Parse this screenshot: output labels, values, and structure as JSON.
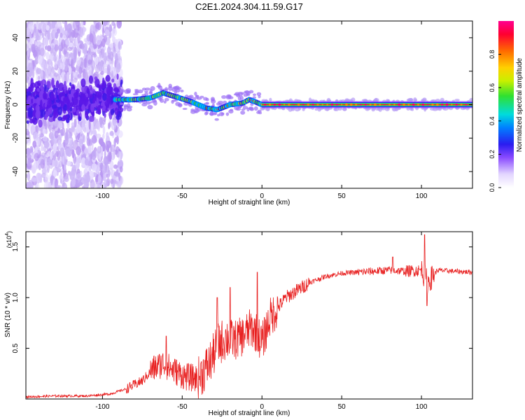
{
  "figure_title": "C2E1.2024.304.11.59.G17",
  "chart_data": [
    {
      "type": "heatmap",
      "xlabel": "Height of straight line (km)",
      "ylabel": "Frequency (Hz)",
      "xlim": [
        -148,
        132
      ],
      "ylim": [
        -50,
        50
      ],
      "xticks": [
        -100,
        -50,
        0,
        50,
        100
      ],
      "xtick_labels": [
        "-100",
        "-50",
        "0",
        "50",
        "100"
      ],
      "yticks": [
        -40,
        -20,
        0,
        20,
        40
      ],
      "ytick_labels": [
        "-40",
        "-20",
        "0",
        "20",
        "40"
      ],
      "colorbar": {
        "label": "Normalized spectral amplitude",
        "range": [
          0,
          1
        ],
        "ticks": [
          0.0,
          0.2,
          0.4,
          0.6,
          0.8
        ],
        "tick_labels": [
          "0.0",
          "0.2",
          "0.4",
          "0.6",
          "0.8"
        ],
        "colors": [
          "#ffffff",
          "#c9b8f2",
          "#7b3cf0",
          "#2a1cf0",
          "#0077ff",
          "#00d8e0",
          "#2be02b",
          "#c8f000",
          "#ffd000",
          "#ff6a00",
          "#ff0030",
          "#ff00a0"
        ]
      },
      "ridge": {
        "description_points_x": [
          -148,
          -120,
          -100,
          -90,
          -80,
          -70,
          -62,
          -55,
          -45,
          -35,
          -28,
          -20,
          -12,
          -8,
          -5,
          0,
          20,
          60,
          100,
          132
        ],
        "description_points_y": [
          2,
          2,
          3,
          3,
          3,
          4,
          7,
          5,
          2,
          -2,
          -3,
          0,
          1,
          3,
          2,
          0,
          0,
          0,
          0,
          0
        ]
      }
    },
    {
      "type": "line",
      "xlabel": "Height of straight line (km)",
      "ylabel": "SNR (10 * v/v)",
      "y_multiplier_label": "(x10",
      "y_multiplier_exp": "4",
      "xlim": [
        -148,
        132
      ],
      "ylim": [
        0,
        1.65
      ],
      "xticks": [
        -100,
        -50,
        0,
        50,
        100
      ],
      "xtick_labels": [
        "-100",
        "-50",
        "0",
        "50",
        "100"
      ],
      "yticks": [
        0.5,
        1.0,
        1.5
      ],
      "ytick_labels": [
        "0.5",
        "1.0",
        "1.5"
      ],
      "series": [
        {
          "color": "#e82020",
          "x": [
            -148,
            -130,
            -110,
            -95,
            -85,
            -75,
            -68,
            -62,
            -55,
            -48,
            -40,
            -33,
            -27,
            -22,
            -17,
            -12,
            -7,
            -3,
            0,
            5,
            10,
            15,
            20,
            25,
            30,
            35,
            40,
            50,
            60,
            70,
            80,
            90,
            100,
            104,
            110,
            120,
            132
          ],
          "y": [
            0.02,
            0.03,
            0.03,
            0.05,
            0.1,
            0.18,
            0.3,
            0.35,
            0.28,
            0.22,
            0.2,
            0.35,
            0.55,
            0.6,
            0.58,
            0.62,
            0.7,
            0.65,
            0.55,
            0.8,
            0.9,
            1.0,
            1.05,
            1.1,
            1.15,
            1.18,
            1.21,
            1.24,
            1.25,
            1.26,
            1.27,
            1.26,
            1.27,
            1.15,
            1.27,
            1.26,
            1.25
          ]
        }
      ],
      "annotated_spikes": [
        {
          "x": -60,
          "y": 0.62
        },
        {
          "x": -28,
          "y": 1.0
        },
        {
          "x": -20,
          "y": 1.1
        },
        {
          "x": -3,
          "y": 1.25
        },
        {
          "x": 82,
          "y": 1.4
        },
        {
          "x": 102,
          "y": 1.62
        },
        {
          "x": 103.5,
          "y": 0.92
        }
      ]
    }
  ]
}
